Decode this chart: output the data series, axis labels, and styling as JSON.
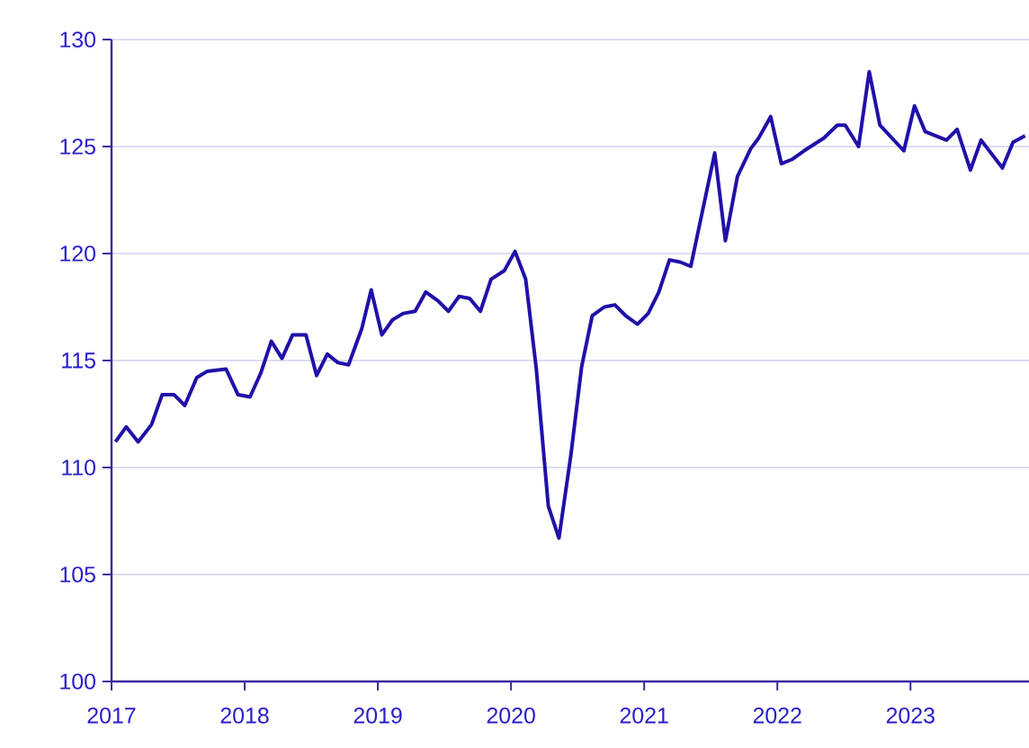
{
  "chart_data": {
    "type": "line",
    "color": "#2010a8",
    "grid": "y",
    "line_style": "solid",
    "x": [
      2017.03,
      2017.11,
      2017.2,
      2017.3,
      2017.38,
      2017.47,
      2017.55,
      2017.64,
      2017.72,
      2017.86,
      2017.95,
      2018.04,
      2018.12,
      2018.2,
      2018.28,
      2018.36,
      2018.46,
      2018.54,
      2018.62,
      2018.7,
      2018.78,
      2018.88,
      2018.95,
      2019.03,
      2019.11,
      2019.19,
      2019.28,
      2019.36,
      2019.45,
      2019.53,
      2019.61,
      2019.69,
      2019.77,
      2019.85,
      2019.95,
      2020.03,
      2020.11,
      2020.19,
      2020.28,
      2020.36,
      2020.45,
      2020.53,
      2020.61,
      2020.7,
      2020.78,
      2020.86,
      2020.95,
      2021.03,
      2021.11,
      2021.19,
      2021.27,
      2021.35,
      2021.53,
      2021.61,
      2021.7,
      2021.8,
      2021.86,
      2021.95,
      2022.03,
      2022.11,
      2022.2,
      2022.35,
      2022.45,
      2022.51,
      2022.61,
      2022.69,
      2022.77,
      2022.95,
      2023.03,
      2023.11,
      2023.27,
      2023.35,
      2023.45,
      2023.53,
      2023.69,
      2023.77,
      2023.86
    ],
    "values": [
      111.2,
      111.9,
      111.2,
      112.0,
      113.4,
      113.4,
      112.9,
      114.2,
      114.5,
      114.6,
      113.4,
      113.3,
      114.4,
      115.9,
      115.1,
      116.2,
      116.2,
      114.3,
      115.3,
      114.9,
      114.8,
      116.5,
      118.3,
      116.2,
      116.9,
      117.2,
      117.3,
      118.2,
      117.8,
      117.3,
      118.0,
      117.9,
      117.3,
      118.8,
      119.2,
      120.1,
      118.8,
      114.6,
      108.2,
      106.7,
      110.6,
      114.7,
      117.1,
      117.5,
      117.6,
      117.1,
      116.7,
      117.2,
      118.2,
      119.7,
      119.6,
      119.4,
      124.7,
      120.6,
      123.6,
      124.9,
      125.4,
      126.4,
      124.2,
      124.4,
      124.8,
      125.4,
      126.0,
      126.0,
      125.0,
      128.5,
      126.0,
      124.8,
      126.9,
      125.7,
      125.3,
      125.8,
      123.9,
      125.3,
      124.0,
      125.2,
      125.5
    ],
    "xlim": [
      2017,
      2023.89
    ],
    "xticks": [
      {
        "value": 2017,
        "label": "2017"
      },
      {
        "value": 2018,
        "label": "2018"
      },
      {
        "value": 2019,
        "label": "2019"
      },
      {
        "value": 2020,
        "label": "2020"
      },
      {
        "value": 2021,
        "label": "2021"
      },
      {
        "value": 2022,
        "label": "2022"
      },
      {
        "value": 2023,
        "label": "2023"
      }
    ],
    "ylim": [
      100,
      130
    ],
    "yticks": [
      100,
      105,
      110,
      115,
      120,
      125,
      130
    ]
  }
}
